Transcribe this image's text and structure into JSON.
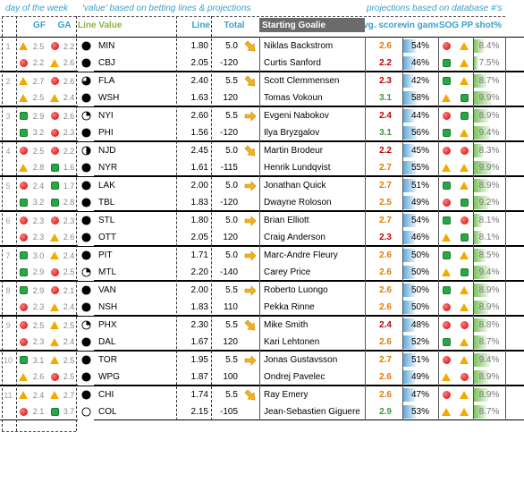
{
  "captions": {
    "left": "day of the week",
    "middle": "'value' based on betting lines & projections",
    "right": "projections based on database #'s"
  },
  "headers": {
    "gf": "GF",
    "ga": "GA",
    "line_value": "Line Value",
    "line": "Line",
    "total": "Total",
    "starting_goalie": "Starting Goalie",
    "avg_score": "avg. score",
    "win_game": "win game",
    "sog_pp": "SOG PP",
    "shot_pct": "shot%"
  },
  "colors": {
    "caption_blue": "#3aa0c8",
    "line_value_green": "#8cb63c",
    "avg_red": "#c00000",
    "avg_orange": "#e07b00",
    "avg_green": "#3a9a3a"
  },
  "games": [
    {
      "num": "1",
      "rows": [
        {
          "gf_icon": "triangle",
          "gf": "2.5",
          "ga_icon": "red-dot",
          "ga": "2.2",
          "lv_icon": "full",
          "team": "MIN",
          "line": "1.80",
          "total": "5.0",
          "arrow": "down",
          "goalie": "Niklas Backstrom",
          "avg": "2.6",
          "avg_color": "orange",
          "win": "54%",
          "win_frac": 0.54,
          "sog": "red-dot",
          "pp": "triangle",
          "shot": "8.4%",
          "shot_frac": 0.4
        },
        {
          "gf_icon": "red-dot",
          "gf": "2.2",
          "ga_icon": "triangle",
          "ga": "2.6",
          "lv_icon": "full",
          "team": "CBJ",
          "line": "2.05",
          "total": "-120",
          "arrow": "",
          "goalie": "Curtis Sanford",
          "avg": "2.2",
          "avg_color": "red",
          "win": "46%",
          "win_frac": 0.46,
          "sog": "square",
          "pp": "triangle",
          "shot": "7.5%",
          "shot_frac": 0.0
        }
      ]
    },
    {
      "num": "2",
      "rows": [
        {
          "gf_icon": "triangle",
          "gf": "2.7",
          "ga_icon": "red-dot",
          "ga": "2.6",
          "lv_icon": "three-quarter",
          "team": "FLA",
          "line": "2.40",
          "total": "5.5",
          "arrow": "down",
          "goalie": "Scott Clemmensen",
          "avg": "2.3",
          "avg_color": "red",
          "win": "42%",
          "win_frac": 0.42,
          "sog": "square",
          "pp": "triangle",
          "shot": "8.7%",
          "shot_frac": 0.6
        },
        {
          "gf_icon": "triangle",
          "gf": "2.5",
          "ga_icon": "triangle",
          "ga": "2.4",
          "lv_icon": "full",
          "team": "WSH",
          "line": "1.63",
          "total": "120",
          "arrow": "",
          "goalie": "Tomas Vokoun",
          "avg": "3.1",
          "avg_color": "green",
          "win": "58%",
          "win_frac": 0.58,
          "sog": "triangle",
          "pp": "square",
          "shot": "9.9%",
          "shot_frac": 1.0
        }
      ]
    },
    {
      "num": "3",
      "rows": [
        {
          "gf_icon": "square",
          "gf": "2.9",
          "ga_icon": "red-dot",
          "ga": "2.6",
          "lv_icon": "quarter",
          "team": "NYI",
          "line": "2.60",
          "total": "5.5",
          "arrow": "right",
          "goalie": "Evgeni Nabokov",
          "avg": "2.4",
          "avg_color": "red",
          "win": "44%",
          "win_frac": 0.44,
          "sog": "red-dot",
          "pp": "square",
          "shot": "8.9%",
          "shot_frac": 0.7
        },
        {
          "gf_icon": "square",
          "gf": "3.2",
          "ga_icon": "red-dot",
          "ga": "2.3",
          "lv_icon": "full",
          "team": "PHI",
          "line": "1.56",
          "total": "-120",
          "arrow": "",
          "goalie": "Ilya Bryzgalov",
          "avg": "3.1",
          "avg_color": "green",
          "win": "56%",
          "win_frac": 0.56,
          "sog": "square",
          "pp": "triangle",
          "shot": "9.4%",
          "shot_frac": 0.85
        }
      ]
    },
    {
      "num": "4",
      "rows": [
        {
          "gf_icon": "red-dot",
          "gf": "2.5",
          "ga_icon": "red-dot",
          "ga": "2.2",
          "lv_icon": "half",
          "team": "NJD",
          "line": "2.45",
          "total": "5.0",
          "arrow": "down",
          "goalie": "Martin Brodeur",
          "avg": "2.2",
          "avg_color": "red",
          "win": "45%",
          "win_frac": 0.45,
          "sog": "red-dot",
          "pp": "red-dot",
          "shot": "8.3%",
          "shot_frac": 0.35
        },
        {
          "gf_icon": "triangle",
          "gf": "2.8",
          "ga_icon": "square",
          "ga": "1.6",
          "lv_icon": "full",
          "team": "NYR",
          "line": "1.61",
          "total": "-115",
          "arrow": "",
          "goalie": "Henrik Lundqvist",
          "avg": "2.7",
          "avg_color": "orange",
          "win": "55%",
          "win_frac": 0.55,
          "sog": "triangle",
          "pp": "triangle",
          "shot": "9.9%",
          "shot_frac": 1.0
        }
      ]
    },
    {
      "num": "5",
      "rows": [
        {
          "gf_icon": "red-dot",
          "gf": "2.4",
          "ga_icon": "square",
          "ga": "1.7",
          "lv_icon": "full",
          "team": "LAK",
          "line": "2.00",
          "total": "5.0",
          "arrow": "right",
          "goalie": "Jonathan Quick",
          "avg": "2.7",
          "avg_color": "orange",
          "win": "51%",
          "win_frac": 0.51,
          "sog": "square",
          "pp": "triangle",
          "shot": "8.9%",
          "shot_frac": 0.7
        },
        {
          "gf_icon": "square",
          "gf": "3.2",
          "ga_icon": "square",
          "ga": "2.8",
          "lv_icon": "full",
          "team": "TBL",
          "line": "1.83",
          "total": "-120",
          "arrow": "",
          "goalie": "Dwayne Roloson",
          "avg": "2.5",
          "avg_color": "orange",
          "win": "49%",
          "win_frac": 0.49,
          "sog": "red-dot",
          "pp": "square",
          "shot": "9.2%",
          "shot_frac": 0.8
        }
      ]
    },
    {
      "num": "6",
      "rows": [
        {
          "gf_icon": "red-dot",
          "gf": "2.3",
          "ga_icon": "red-dot",
          "ga": "2.3",
          "lv_icon": "full",
          "team": "STL",
          "line": "1.80",
          "total": "5.0",
          "arrow": "right",
          "goalie": "Brian Elliott",
          "avg": "2.7",
          "avg_color": "orange",
          "win": "54%",
          "win_frac": 0.54,
          "sog": "square",
          "pp": "red-dot",
          "shot": "8.1%",
          "shot_frac": 0.25
        },
        {
          "gf_icon": "red-dot",
          "gf": "2.3",
          "ga_icon": "triangle",
          "ga": "2.6",
          "lv_icon": "full",
          "team": "OTT",
          "line": "2.05",
          "total": "120",
          "arrow": "",
          "goalie": "Craig Anderson",
          "avg": "2.3",
          "avg_color": "red",
          "win": "46%",
          "win_frac": 0.46,
          "sog": "triangle",
          "pp": "square",
          "shot": "8.1%",
          "shot_frac": 0.25
        }
      ]
    },
    {
      "num": "7",
      "rows": [
        {
          "gf_icon": "square",
          "gf": "3.0",
          "ga_icon": "triangle",
          "ga": "2.4",
          "lv_icon": "full",
          "team": "PIT",
          "line": "1.71",
          "total": "5.0",
          "arrow": "right",
          "goalie": "Marc-Andre Fleury",
          "avg": "2.6",
          "avg_color": "orange",
          "win": "50%",
          "win_frac": 0.5,
          "sog": "square",
          "pp": "triangle",
          "shot": "8.5%",
          "shot_frac": 0.5
        },
        {
          "gf_icon": "square",
          "gf": "2.9",
          "ga_icon": "red-dot",
          "ga": "2.5",
          "lv_icon": "quarter",
          "team": "MTL",
          "line": "2.20",
          "total": "-140",
          "arrow": "",
          "goalie": "Carey Price",
          "avg": "2.6",
          "avg_color": "orange",
          "win": "50%",
          "win_frac": 0.5,
          "sog": "triangle",
          "pp": "square",
          "shot": "9.4%",
          "shot_frac": 0.85
        }
      ]
    },
    {
      "num": "8",
      "rows": [
        {
          "gf_icon": "square",
          "gf": "2.9",
          "ga_icon": "red-dot",
          "ga": "2.1",
          "lv_icon": "full",
          "team": "VAN",
          "line": "2.00",
          "total": "5.5",
          "arrow": "right",
          "goalie": "Roberto Luongo",
          "avg": "2.6",
          "avg_color": "orange",
          "win": "50%",
          "win_frac": 0.5,
          "sog": "square",
          "pp": "triangle",
          "shot": "8.9%",
          "shot_frac": 0.7
        },
        {
          "gf_icon": "red-dot",
          "gf": "2.3",
          "ga_icon": "triangle",
          "ga": "2.4",
          "lv_icon": "full",
          "team": "NSH",
          "line": "1.83",
          "total": "110",
          "arrow": "",
          "goalie": "Pekka Rinne",
          "avg": "2.6",
          "avg_color": "orange",
          "win": "50%",
          "win_frac": 0.5,
          "sog": "red-dot",
          "pp": "triangle",
          "shot": "8.9%",
          "shot_frac": 0.7
        }
      ]
    },
    {
      "num": "9",
      "rows": [
        {
          "gf_icon": "red-dot",
          "gf": "2.5",
          "ga_icon": "triangle",
          "ga": "2.5",
          "lv_icon": "quarter",
          "team": "PHX",
          "line": "2.30",
          "total": "5.5",
          "arrow": "down",
          "goalie": "Mike Smith",
          "avg": "2.4",
          "avg_color": "red",
          "win": "48%",
          "win_frac": 0.48,
          "sog": "red-dot",
          "pp": "red-dot",
          "shot": "8.8%",
          "shot_frac": 0.65
        },
        {
          "gf_icon": "red-dot",
          "gf": "2.3",
          "ga_icon": "triangle",
          "ga": "2.4",
          "lv_icon": "full",
          "team": "DAL",
          "line": "1.67",
          "total": "120",
          "arrow": "",
          "goalie": "Kari Lehtonen",
          "avg": "2.6",
          "avg_color": "orange",
          "win": "52%",
          "win_frac": 0.52,
          "sog": "square",
          "pp": "triangle",
          "shot": "8.7%",
          "shot_frac": 0.6
        }
      ]
    },
    {
      "num": "10",
      "rows": [
        {
          "gf_icon": "square",
          "gf": "3.1",
          "ga_icon": "triangle",
          "ga": "2.5",
          "lv_icon": "full",
          "team": "TOR",
          "line": "1.95",
          "total": "5.5",
          "arrow": "right",
          "goalie": "Jonas Gustavsson",
          "avg": "2.7",
          "avg_color": "orange",
          "win": "51%",
          "win_frac": 0.51,
          "sog": "red-dot",
          "pp": "triangle",
          "shot": "9.4%",
          "shot_frac": 0.85
        },
        {
          "gf_icon": "triangle",
          "gf": "2.6",
          "ga_icon": "red-dot",
          "ga": "2.5",
          "lv_icon": "full",
          "team": "WPG",
          "line": "1.87",
          "total": "100",
          "arrow": "",
          "goalie": "Ondrej Pavelec",
          "avg": "2.6",
          "avg_color": "orange",
          "win": "49%",
          "win_frac": 0.49,
          "sog": "triangle",
          "pp": "red-dot",
          "shot": "8.9%",
          "shot_frac": 0.7
        }
      ]
    },
    {
      "num": "11",
      "rows": [
        {
          "gf_icon": "triangle",
          "gf": "2.4",
          "ga_icon": "triangle",
          "ga": "2.7",
          "lv_icon": "full",
          "team": "CHI",
          "line": "1.74",
          "total": "5.5",
          "arrow": "down",
          "goalie": "Ray Emery",
          "avg": "2.6",
          "avg_color": "orange",
          "win": "47%",
          "win_frac": 0.47,
          "sog": "red-dot",
          "pp": "triangle",
          "shot": "8.9%",
          "shot_frac": 0.7
        },
        {
          "gf_icon": "red-dot",
          "gf": "2.1",
          "ga_icon": "square",
          "ga": "3.7",
          "lv_icon": "empty",
          "team": "COL",
          "line": "2.15",
          "total": "-105",
          "arrow": "",
          "goalie": "Jean-Sebastien Giguere",
          "avg": "2.9",
          "avg_color": "green",
          "win": "53%",
          "win_frac": 0.53,
          "sog": "triangle",
          "pp": "triangle",
          "shot": "8.7%",
          "shot_frac": 0.6
        }
      ]
    }
  ]
}
